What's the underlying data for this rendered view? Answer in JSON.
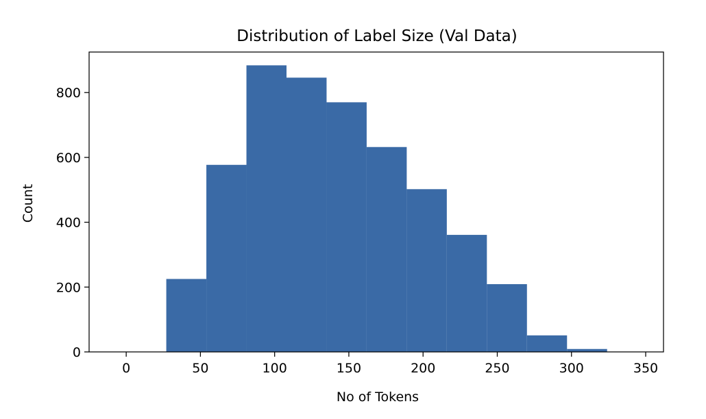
{
  "chart_data": {
    "type": "bar",
    "title": "Distribution of Label Size (Val Data)",
    "xlabel": "No of Tokens",
    "ylabel": "Count",
    "xlim": [
      -25,
      362
    ],
    "ylim": [
      0,
      925
    ],
    "x_ticks": [
      0,
      50,
      100,
      150,
      200,
      250,
      300,
      350
    ],
    "y_ticks": [
      0,
      200,
      400,
      600,
      800
    ],
    "bins": [
      {
        "x0": 0,
        "x1": 27,
        "count": 0
      },
      {
        "x0": 27,
        "x1": 54,
        "count": 225
      },
      {
        "x0": 54,
        "x1": 81,
        "count": 577
      },
      {
        "x0": 81,
        "x1": 108,
        "count": 884
      },
      {
        "x0": 108,
        "x1": 135,
        "count": 846
      },
      {
        "x0": 135,
        "x1": 162,
        "count": 770
      },
      {
        "x0": 162,
        "x1": 189,
        "count": 632
      },
      {
        "x0": 189,
        "x1": 216,
        "count": 502
      },
      {
        "x0": 216,
        "x1": 243,
        "count": 361
      },
      {
        "x0": 243,
        "x1": 270,
        "count": 209
      },
      {
        "x0": 270,
        "x1": 297,
        "count": 51
      },
      {
        "x0": 297,
        "x1": 324,
        "count": 9
      },
      {
        "x0": 324,
        "x1": 351,
        "count": 1
      }
    ],
    "bar_color": "#3a6aa6",
    "grid": false,
    "legend": "none"
  }
}
